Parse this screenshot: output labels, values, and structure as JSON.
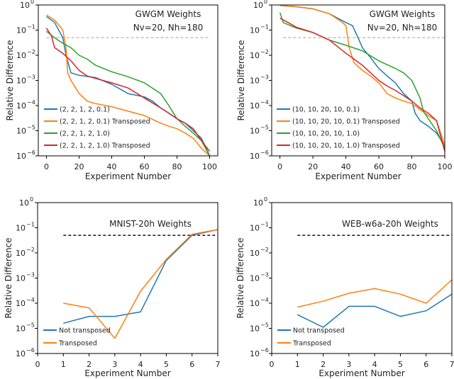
{
  "chart_data": [
    {
      "type": "line",
      "title": "",
      "annotation": [
        "GWGM Weights",
        "Nv=20, Nh=180"
      ],
      "xlabel": "Experiment Number",
      "ylabel": "Relative Difference",
      "xlim": [
        -5,
        105
      ],
      "ylim": [
        1e-06,
        1
      ],
      "yscale": "log",
      "xticks": [
        0,
        20,
        40,
        60,
        80,
        100
      ],
      "yticks": [
        -6,
        -5,
        -4,
        -3,
        -2,
        -1,
        0
      ],
      "legend": "lower-left",
      "threshold": {
        "y": 0.05,
        "x": [
          0,
          100
        ],
        "color": "#bbbbbb",
        "style": "dashed"
      },
      "series": [
        {
          "name": "(2, 2, 1, 2, 0.1)",
          "color": "#1f77b4",
          "x": [
            0,
            5,
            10,
            12,
            15,
            20,
            30,
            40,
            50,
            60,
            65,
            70,
            75,
            80,
            85,
            90,
            95,
            100
          ],
          "y": [
            0.35,
            0.2,
            0.05,
            0.01,
            0.002,
            0.0016,
            0.0013,
            0.0007,
            0.0003,
            0.00022,
            0.00015,
            8e-05,
            5e-05,
            3e-05,
            2e-05,
            1e-05,
            5e-06,
            1e-06
          ]
        },
        {
          "name": "(2, 2, 1, 2, 0.1) Transposed",
          "color": "#ff7f0e",
          "x": [
            0,
            5,
            10,
            12,
            13,
            15,
            20,
            25,
            30,
            40,
            50,
            60,
            70,
            75,
            80,
            85,
            90,
            95,
            100
          ],
          "y": [
            0.4,
            0.25,
            0.1,
            0.02,
            0.002,
            0.001,
            0.0003,
            0.00015,
            0.00012,
            9e-05,
            6e-05,
            4e-05,
            2e-05,
            1.5e-05,
            1.2e-05,
            8e-06,
            5e-06,
            2e-06,
            1e-06
          ]
        },
        {
          "name": "(2, 2, 1, 2, 1.0)",
          "color": "#2ca02c",
          "x": [
            0,
            5,
            10,
            15,
            20,
            25,
            30,
            40,
            50,
            60,
            70,
            75,
            80,
            85,
            90,
            95,
            100
          ],
          "y": [
            0.09,
            0.05,
            0.03,
            0.02,
            0.01,
            0.007,
            0.004,
            0.0022,
            0.0014,
            0.0008,
            0.0003,
            0.0001,
            3e-05,
            1.5e-05,
            8e-06,
            4e-06,
            1e-06
          ]
        },
        {
          "name": "(2, 2, 1, 2, 1.0) Transposed",
          "color": "#d62728",
          "x": [
            0,
            3,
            5,
            10,
            15,
            20,
            25,
            30,
            40,
            50,
            60,
            70,
            75,
            80,
            85,
            90,
            95,
            100
          ],
          "y": [
            0.12,
            0.06,
            0.02,
            0.012,
            0.006,
            0.0025,
            0.0015,
            0.0012,
            0.0008,
            0.0005,
            0.0002,
            8e-05,
            5e-05,
            3e-05,
            2e-05,
            1.2e-05,
            4e-06,
            1.5e-06
          ]
        }
      ]
    },
    {
      "type": "line",
      "title": "",
      "annotation": [
        "GWGM Weights",
        "Nv=20, Nh=180"
      ],
      "xlabel": "Experiment Number",
      "ylabel": "Relative Difference",
      "xlim": [
        -5,
        100
      ],
      "ylim": [
        1e-06,
        1
      ],
      "yscale": "log",
      "xticks": [
        0,
        20,
        40,
        60,
        80,
        100
      ],
      "yticks": [
        -6,
        -5,
        -4,
        -3,
        -2,
        -1,
        0
      ],
      "legend": "lower-left",
      "threshold": {
        "y": 0.05,
        "x": [
          2,
          100
        ],
        "color": "#bbbbbb",
        "style": "dashed"
      },
      "series": [
        {
          "name": "(10, 10, 20, 10, 0.1)",
          "color": "#1f77b4",
          "x": [
            0,
            10,
            20,
            30,
            35,
            40,
            44,
            48,
            50,
            55,
            60,
            65,
            70,
            75,
            80,
            82,
            85,
            90,
            95,
            100
          ],
          "y": [
            0.95,
            0.85,
            0.7,
            0.45,
            0.3,
            0.2,
            0.15,
            0.04,
            0.02,
            0.008,
            0.003,
            0.0015,
            0.0008,
            0.0003,
            0.00015,
            5e-05,
            2.5e-05,
            1.5e-05,
            8e-06,
            2.5e-06
          ]
        },
        {
          "name": "(10, 10, 20, 10, 0.1) Transposed",
          "color": "#ff7f0e",
          "x": [
            0,
            10,
            20,
            30,
            38,
            40,
            42,
            45,
            50,
            55,
            60,
            65,
            70,
            75,
            80,
            85,
            90,
            95,
            100
          ],
          "y": [
            0.95,
            0.85,
            0.7,
            0.45,
            0.2,
            0.15,
            0.02,
            0.005,
            0.0025,
            0.0015,
            0.0008,
            0.0003,
            0.0002,
            0.00015,
            0.00012,
            7e-05,
            4e-05,
            2.5e-05,
            2.5e-06
          ]
        },
        {
          "name": "(10, 10, 20, 10, 1.0)",
          "color": "#2ca02c",
          "x": [
            0,
            2,
            10,
            20,
            30,
            40,
            50,
            60,
            70,
            75,
            80,
            85,
            87,
            90,
            95,
            100
          ],
          "y": [
            0.5,
            0.2,
            0.12,
            0.08,
            0.04,
            0.025,
            0.015,
            0.006,
            0.003,
            0.002,
            0.001,
            0.0002,
            6e-05,
            3e-05,
            1e-05,
            2e-06
          ]
        },
        {
          "name": "(10, 10, 20, 10, 1.0) Transposed",
          "color": "#d62728",
          "x": [
            0,
            5,
            10,
            20,
            30,
            40,
            45,
            50,
            55,
            60,
            65,
            70,
            75,
            80,
            85,
            90,
            95,
            100
          ],
          "y": [
            0.3,
            0.2,
            0.13,
            0.08,
            0.04,
            0.012,
            0.007,
            0.004,
            0.002,
            0.001,
            0.0006,
            0.0004,
            0.00025,
            0.00015,
            8e-05,
            5e-05,
            2.5e-05,
            1.5e-06
          ]
        }
      ]
    },
    {
      "type": "line",
      "title": "MNIST-20h Weights",
      "xlabel": "Experiment Number",
      "ylabel": "Relative Difference",
      "xlim": [
        0,
        7
      ],
      "ylim": [
        1e-06,
        1
      ],
      "yscale": "log",
      "xticks": [
        0,
        1,
        2,
        3,
        4,
        5,
        6,
        7
      ],
      "yticks": [
        -6,
        -5,
        -4,
        -3,
        -2,
        -1,
        0
      ],
      "legend": "lower-left",
      "threshold": {
        "y": 0.05,
        "x": [
          1,
          7
        ],
        "color": "#000000",
        "style": "dashed"
      },
      "series": [
        {
          "name": "Not transposed",
          "color": "#1f77b4",
          "x": [
            1,
            2,
            3,
            4,
            5,
            6,
            7
          ],
          "y": [
            1.6e-05,
            3e-05,
            3e-05,
            4.5e-05,
            0.005,
            0.05,
            0.085
          ]
        },
        {
          "name": "Transposed",
          "color": "#ff7f0e",
          "x": [
            1,
            2,
            3,
            4,
            5,
            6,
            7
          ],
          "y": [
            0.0001,
            6.5e-05,
            4e-06,
            0.0003,
            0.0055,
            0.055,
            0.085
          ]
        }
      ]
    },
    {
      "type": "line",
      "title": "WEB-w6a-20h Weights",
      "xlabel": "Experiment Number",
      "ylabel": "Relative Difference",
      "xlim": [
        0,
        7
      ],
      "ylim": [
        1e-06,
        1
      ],
      "yscale": "log",
      "xticks": [
        0,
        1,
        2,
        3,
        4,
        5,
        6,
        7
      ],
      "yticks": [
        -6,
        -5,
        -4,
        -3,
        -2,
        -1,
        0
      ],
      "legend": "lower-left",
      "threshold": {
        "y": 0.05,
        "x": [
          1,
          7
        ],
        "color": "#000000",
        "style": "dashed"
      },
      "series": [
        {
          "name": "Not transposed",
          "color": "#1f77b4",
          "x": [
            1,
            2,
            3,
            4,
            5,
            6,
            7
          ],
          "y": [
            3.5e-05,
            1.1e-05,
            7.5e-05,
            7.5e-05,
            3e-05,
            5e-05,
            0.00023
          ]
        },
        {
          "name": "Transposed",
          "color": "#ff7f0e",
          "x": [
            1,
            2,
            3,
            4,
            5,
            6,
            7
          ],
          "y": [
            7e-05,
            0.00012,
            0.00025,
            0.00038,
            0.00023,
            0.0001,
            0.00085
          ]
        }
      ]
    }
  ]
}
